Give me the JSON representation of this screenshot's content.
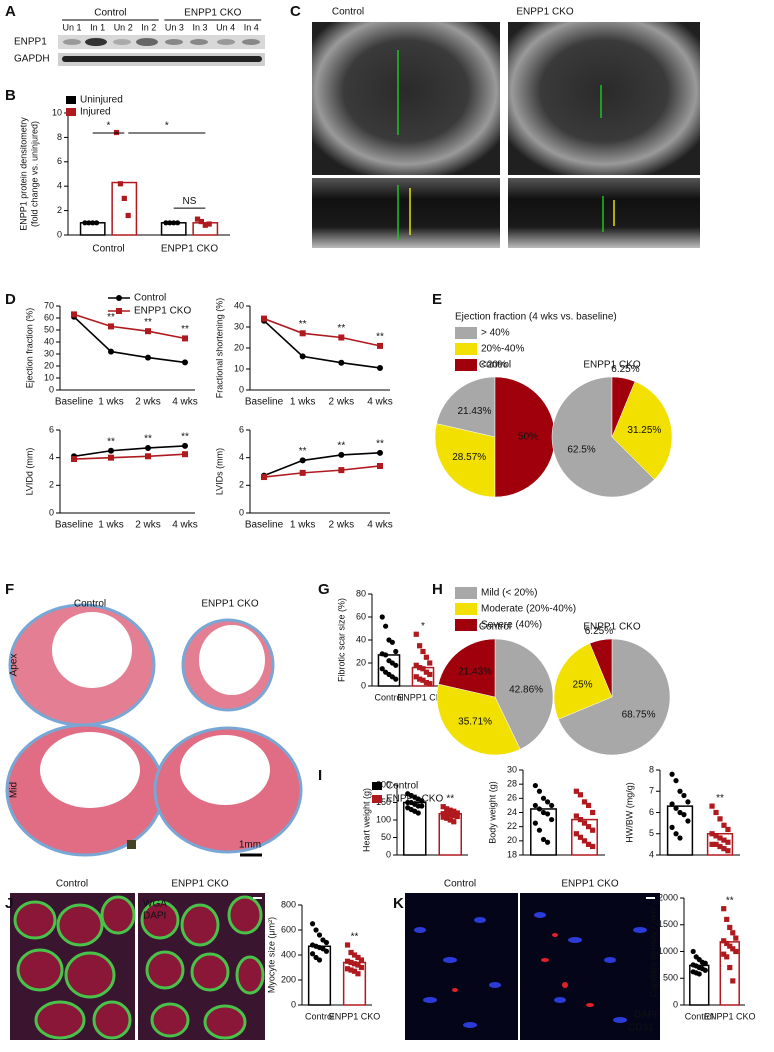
{
  "panel_letters": [
    "A",
    "B",
    "C",
    "D",
    "E",
    "F",
    "G",
    "H",
    "I",
    "J",
    "K"
  ],
  "blot": {
    "groups": [
      "Control",
      "ENPP1 CKO"
    ],
    "lanes": [
      "Un 1",
      "In 1",
      "Un 2",
      "In 2",
      "Un 3",
      "In 3",
      "Un 4",
      "In 4"
    ],
    "rows": [
      "ENPP1",
      "GAPDH"
    ]
  },
  "echo": {
    "labels": [
      "Control",
      "ENPP1 CKO"
    ]
  },
  "histology": {
    "labels": [
      "Control",
      "ENPP1 CKO"
    ],
    "rows": [
      "Apex",
      "Mid"
    ],
    "scale": "1mm"
  },
  "wga": {
    "labels": [
      "Control",
      "ENPP1 CKO"
    ],
    "stains": [
      "WGA",
      "DAPI"
    ]
  },
  "cd31": {
    "labels": [
      "Control",
      "ENPP1 CKO"
    ],
    "stains": [
      "DAPI",
      "CD31"
    ]
  },
  "chart_data": [
    {
      "type": "bar",
      "ylabel": [
        "ENPP1 protein densitometry",
        "(fold change vs. uninjured)"
      ],
      "categories": [
        "Control",
        "ENPP1 CKO"
      ],
      "series": [
        {
          "name": "Uninjured",
          "color": "#000000",
          "values": [
            1,
            1
          ],
          "points": [
            [
              1,
              1,
              1,
              1
            ],
            [
              1,
              1,
              1,
              1
            ]
          ]
        },
        {
          "name": "Injured",
          "color": "#b0191e",
          "values": [
            4.3,
            1.0
          ],
          "points": [
            [
              8.4,
              4.2,
              3.0,
              1.6
            ],
            [
              1.3,
              1.1,
              0.8,
              0.9
            ]
          ]
        }
      ],
      "ylim": [
        0,
        10
      ],
      "yticks": [
        0,
        2,
        4,
        6,
        8,
        10
      ],
      "legend": "upper left",
      "annotations": [
        "*",
        "*",
        "NS"
      ]
    },
    {
      "type": "line",
      "ylabel": "Ejection fraction (%)",
      "categories": [
        "Baseline",
        "1 wks",
        "2 wks",
        "4 wks"
      ],
      "series": [
        {
          "name": "Control",
          "color": "#000000",
          "values": [
            61,
            32,
            27,
            23
          ]
        },
        {
          "name": "ENPP1 CKO",
          "color": "#b0191e",
          "values": [
            63,
            53,
            49,
            43
          ]
        }
      ],
      "ylim": [
        0,
        70
      ],
      "yticks": [
        0,
        10,
        20,
        30,
        40,
        50,
        60,
        70
      ],
      "annotations": [
        null,
        "**",
        "**",
        "**"
      ]
    },
    {
      "type": "line",
      "ylabel": "Fractional shortening (%)",
      "categories": [
        "Baseline",
        "1 wks",
        "2 wks",
        "4 wks"
      ],
      "series": [
        {
          "color": "#000000",
          "values": [
            33,
            16,
            13,
            10.5
          ]
        },
        {
          "color": "#b0191e",
          "values": [
            34,
            27,
            25,
            21
          ]
        }
      ],
      "ylim": [
        0,
        40
      ],
      "yticks": [
        0,
        10,
        20,
        30,
        40
      ],
      "annotations": [
        null,
        "**",
        "**",
        "**"
      ]
    },
    {
      "type": "line",
      "ylabel": "LVIDd (mm)",
      "categories": [
        "Baseline",
        "1 wks",
        "2 wks",
        "4 wks"
      ],
      "series": [
        {
          "color": "#000000",
          "values": [
            4.1,
            4.5,
            4.7,
            4.85
          ]
        },
        {
          "color": "#b0191e",
          "values": [
            3.9,
            4.0,
            4.1,
            4.25
          ]
        }
      ],
      "ylim": [
        0,
        6
      ],
      "yticks": [
        0,
        2,
        4,
        6
      ],
      "annotations": [
        null,
        "**",
        "**",
        "**"
      ]
    },
    {
      "type": "line",
      "ylabel": "LVIDs (mm)",
      "categories": [
        "Baseline",
        "1 wks",
        "2 wks",
        "4 wks"
      ],
      "series": [
        {
          "color": "#000000",
          "values": [
            2.7,
            3.8,
            4.2,
            4.35
          ]
        },
        {
          "color": "#b0191e",
          "values": [
            2.6,
            2.9,
            3.1,
            3.4
          ]
        }
      ],
      "ylim": [
        0,
        6
      ],
      "yticks": [
        0,
        2,
        4,
        6
      ],
      "annotations": [
        null,
        "**",
        "**",
        "**"
      ]
    },
    {
      "type": "pie",
      "title": "Ejection fraction (4 wks vs. baseline)",
      "labels": [
        "> 40%",
        "20%-40%",
        "<20%"
      ],
      "colors": [
        "#a8a8a8",
        "#f2e000",
        "#a0000c"
      ],
      "direction": "counterclockwise",
      "pies": [
        {
          "name": "Control",
          "values": [
            21.43,
            28.57,
            50
          ],
          "value_labels": [
            "21.43%",
            "28.57%",
            "50%"
          ]
        },
        {
          "name": "ENPP1 CKO",
          "values": [
            62.5,
            31.25,
            6.25
          ],
          "value_labels": [
            "62.5%",
            "31.25%",
            "6.25%"
          ]
        }
      ]
    },
    {
      "type": "bar",
      "ylabel": "Fibrotic scar size (%)",
      "categories": [
        "Control",
        "ENPP1 CKO"
      ],
      "values": [
        27,
        16
      ],
      "colors": [
        "#000000",
        "#b0191e"
      ],
      "points": [
        [
          60,
          52,
          40,
          38,
          30,
          28,
          27,
          22,
          20,
          18,
          15,
          12,
          10,
          8,
          6
        ],
        [
          45,
          35,
          30,
          25,
          20,
          18,
          16,
          15,
          12,
          10,
          8,
          6,
          5,
          3,
          2
        ]
      ],
      "ylim": [
        0,
        80
      ],
      "yticks": [
        0,
        20,
        40,
        60,
        80
      ],
      "annotations": [
        null,
        "*"
      ]
    },
    {
      "type": "pie",
      "labels": [
        "Mild (< 20%)",
        "Moderate (20%-40%)",
        "Severe (40%)"
      ],
      "colors": [
        "#a8a8a8",
        "#f2e000",
        "#a0000c"
      ],
      "direction": "clockwise",
      "pies": [
        {
          "name": "Control",
          "values": [
            42.86,
            35.71,
            21.43
          ],
          "value_labels": [
            "42.86%",
            "35.71%",
            "21.43%"
          ]
        },
        {
          "name": "ENPP1 CKO",
          "values": [
            68.75,
            25,
            6.25
          ],
          "value_labels": [
            "68.75%",
            "25%",
            "6.25%"
          ]
        }
      ]
    },
    {
      "type": "bar",
      "ylabel": "Heart weight (g)",
      "legend_labels": [
        "Control",
        "ENPP1 CKO"
      ],
      "values": [
        150,
        118
      ],
      "colors": [
        "#000000",
        "#b0191e"
      ],
      "points": [
        [
          175,
          170,
          165,
          160,
          155,
          150,
          150,
          145,
          140,
          140,
          135,
          130,
          125,
          120
        ],
        [
          138,
          132,
          128,
          125,
          120,
          118,
          118,
          115,
          112,
          110,
          108,
          105,
          100,
          95
        ]
      ],
      "ylim": [
        0,
        200
      ],
      "yticks": [
        0,
        50,
        100,
        150,
        200
      ],
      "annotations": [
        null,
        "**"
      ]
    },
    {
      "type": "bar",
      "ylabel": "Body weight (g)",
      "values": [
        24.5,
        23
      ],
      "colors": [
        "#000000",
        "#b0191e"
      ],
      "points": [
        [
          27.8,
          27,
          26,
          25.5,
          25,
          25,
          24.5,
          24,
          23.8,
          23,
          22.5,
          21.5,
          20.2,
          19.8
        ],
        [
          27,
          26.5,
          25.5,
          25,
          24,
          23.5,
          23,
          22.5,
          22,
          21.5,
          21,
          20.5,
          20,
          19.5,
          19.2
        ]
      ],
      "ylim": [
        18,
        30
      ],
      "yticks": [
        18,
        20,
        22,
        24,
        26,
        28,
        30
      ]
    },
    {
      "type": "bar",
      "ylabel": "HW/BW (mg/g)",
      "values": [
        6.3,
        5.0
      ],
      "colors": [
        "#000000",
        "#b0191e"
      ],
      "points": [
        [
          7.8,
          7.5,
          7.0,
          6.8,
          6.5,
          6.4,
          6.2,
          6.0,
          5.9,
          5.6,
          5.3,
          5.0,
          4.8
        ],
        [
          6.3,
          6.0,
          5.7,
          5.4,
          5.2,
          5.0,
          4.9,
          4.8,
          4.7,
          4.6,
          4.5,
          4.5,
          4.4,
          4.3,
          4.2
        ]
      ],
      "ylim": [
        4,
        8
      ],
      "yticks": [
        4,
        5,
        6,
        7,
        8
      ],
      "annotations": [
        null,
        "**"
      ]
    },
    {
      "type": "bar",
      "ylabel": "Myocyte size (μm²)",
      "categories": [
        "Control",
        "ENPP1 CKO"
      ],
      "values": [
        470,
        340
      ],
      "colors": [
        "#000000",
        "#b0191e"
      ],
      "points": [
        [
          650,
          600,
          560,
          520,
          500,
          480,
          470,
          460,
          450,
          430,
          410,
          380,
          360
        ],
        [
          480,
          420,
          400,
          380,
          360,
          350,
          340,
          330,
          320,
          300,
          290,
          280,
          270,
          250
        ]
      ],
      "ylim": [
        0,
        800
      ],
      "yticks": [
        0,
        200,
        400,
        600,
        800
      ],
      "annotations": [
        null,
        "**"
      ]
    },
    {
      "type": "bar",
      "ylabel": "Capillary density / mm²",
      "categories": [
        "Control",
        "ENPP1 CKO"
      ],
      "values": [
        740,
        1180
      ],
      "colors": [
        "#000000",
        "#b0191e"
      ],
      "points": [
        [
          1000,
          900,
          850,
          800,
          780,
          750,
          730,
          700,
          680,
          650,
          620,
          600,
          580
        ],
        [
          1800,
          1600,
          1450,
          1350,
          1250,
          1200,
          1150,
          1100,
          1050,
          1000,
          950,
          900,
          700,
          450
        ]
      ],
      "ylim": [
        0,
        2000
      ],
      "yticks": [
        0,
        500,
        1000,
        1500,
        2000
      ],
      "annotations": [
        null,
        "**"
      ]
    }
  ]
}
